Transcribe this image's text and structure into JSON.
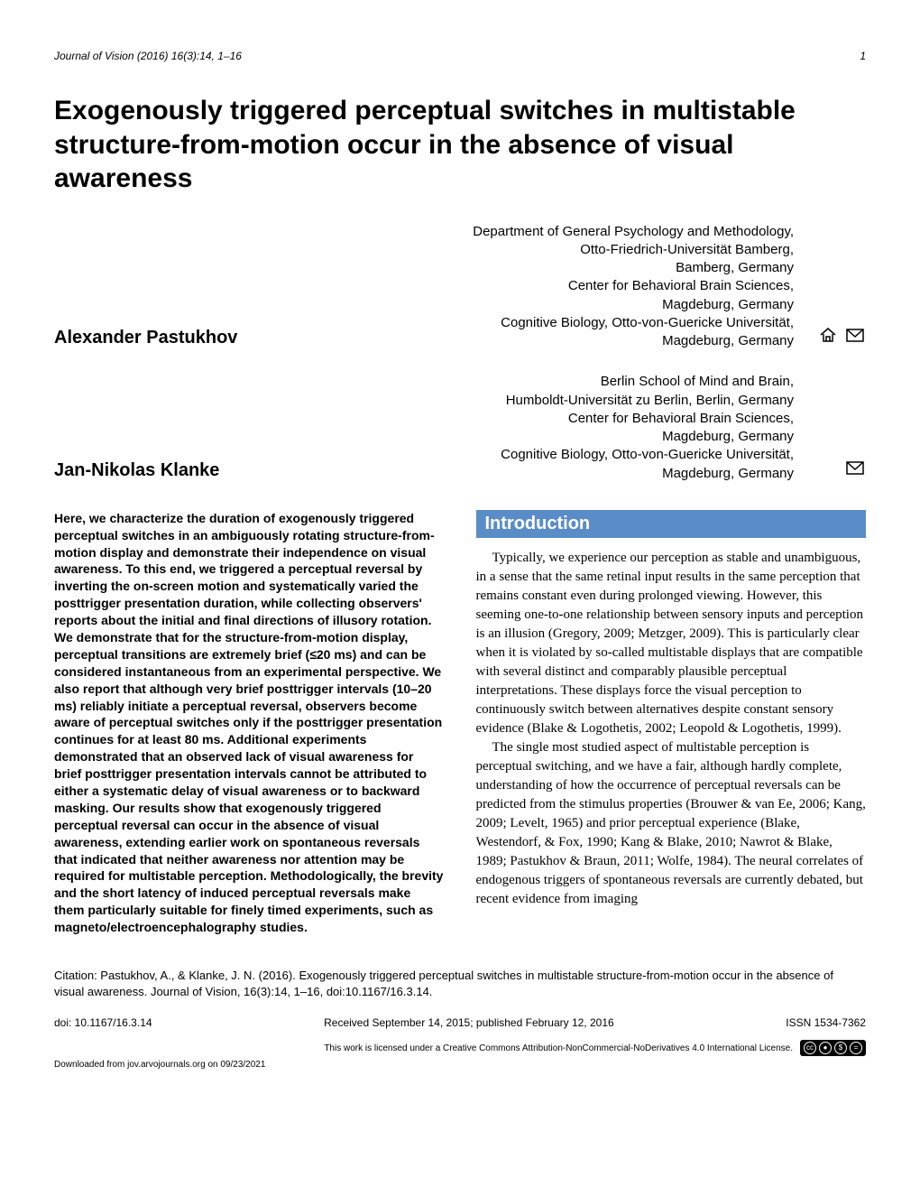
{
  "header": {
    "journal_citation": "Journal of Vision (2016) 16(3):14, 1–16",
    "page_number": "1"
  },
  "title": "Exogenously triggered perceptual switches in multistable structure-from-motion occur in the absence of visual awareness",
  "authors": [
    {
      "name": "Alexander Pastukhov",
      "affiliations": "Department of General Psychology and Methodology,\nOtto-Friedrich-Universität Bamberg,\nBamberg, Germany\nCenter for Behavioral Brain Sciences,\nMagdeburg, Germany\nCognitive Biology, Otto-von-Guericke Universität,\nMagdeburg, Germany",
      "has_home_icon": true,
      "has_mail_icon": true
    },
    {
      "name": "Jan-Nikolas Klanke",
      "affiliations": "Berlin School of Mind and Brain,\nHumboldt-Universität zu Berlin, Berlin, Germany\nCenter for Behavioral Brain Sciences,\nMagdeburg, Germany\nCognitive Biology, Otto-von-Guericke Universität,\nMagdeburg, Germany",
      "has_home_icon": false,
      "has_mail_icon": true
    }
  ],
  "abstract": "Here, we characterize the duration of exogenously triggered perceptual switches in an ambiguously rotating structure-from-motion display and demonstrate their independence on visual awareness. To this end, we triggered a perceptual reversal by inverting the on-screen motion and systematically varied the posttrigger presentation duration, while collecting observers' reports about the initial and final directions of illusory rotation. We demonstrate that for the structure-from-motion display, perceptual transitions are extremely brief (≤20 ms) and can be considered instantaneous from an experimental perspective. We also report that although very brief posttrigger intervals (10–20 ms) reliably initiate a perceptual reversal, observers become aware of perceptual switches only if the posttrigger presentation continues for at least 80 ms. Additional experiments demonstrated that an observed lack of visual awareness for brief posttrigger presentation intervals cannot be attributed to either a systematic delay of visual awareness or to backward masking. Our results show that exogenously triggered perceptual reversal can occur in the absence of visual awareness, extending earlier work on spontaneous reversals that indicated that neither awareness nor attention may be required for multistable perception. Methodologically, the brevity and the short latency of induced perceptual reversals make them particularly suitable for finely timed experiments, such as magneto/electroencephalography studies.",
  "introduction": {
    "heading": "Introduction",
    "paragraphs": [
      "Typically, we experience our perception as stable and unambiguous, in a sense that the same retinal input results in the same perception that remains constant even during prolonged viewing. However, this seeming one-to-one relationship between sensory inputs and perception is an illusion (Gregory, 2009; Metzger, 2009). This is particularly clear when it is violated by so-called multistable displays that are compatible with several distinct and comparably plausible perceptual interpretations. These displays force the visual perception to continuously switch between alternatives despite constant sensory evidence (Blake & Logothetis, 2002; Leopold & Logothetis, 1999).",
      "The single most studied aspect of multistable perception is perceptual switching, and we have a fair, although hardly complete, understanding of how the occurrence of perceptual reversals can be predicted from the stimulus properties (Brouwer & van Ee, 2006; Kang, 2009; Levelt, 1965) and prior perceptual experience (Blake, Westendorf, & Fox, 1990; Kang & Blake, 2010; Nawrot & Blake, 1989; Pastukhov & Braun, 2011; Wolfe, 1984). The neural correlates of endogenous triggers of spontaneous reversals are currently debated, but recent evidence from imaging"
    ]
  },
  "citation": "Citation: Pastukhov, A., & Klanke, J. N. (2016). Exogenously triggered perceptual switches in multistable structure-from-motion occur in the absence of visual awareness. Journal of Vision, 16(3):14, 1–16, doi:10.1167/16.3.14.",
  "footer": {
    "doi": "doi: 10.1167/16.3.14",
    "dates": "Received September 14, 2015; published February 12, 2016",
    "issn": "ISSN 1534-7362",
    "license_text": "This work is licensed under a Creative Commons Attribution-NonCommercial-NoDerivatives 4.0 International License.",
    "download": "Downloaded from jov.arvojournals.org on 09/23/2021"
  },
  "colors": {
    "section_header_bg": "#5a8dc8",
    "section_header_text": "#ffffff",
    "text": "#000000",
    "background": "#ffffff"
  }
}
